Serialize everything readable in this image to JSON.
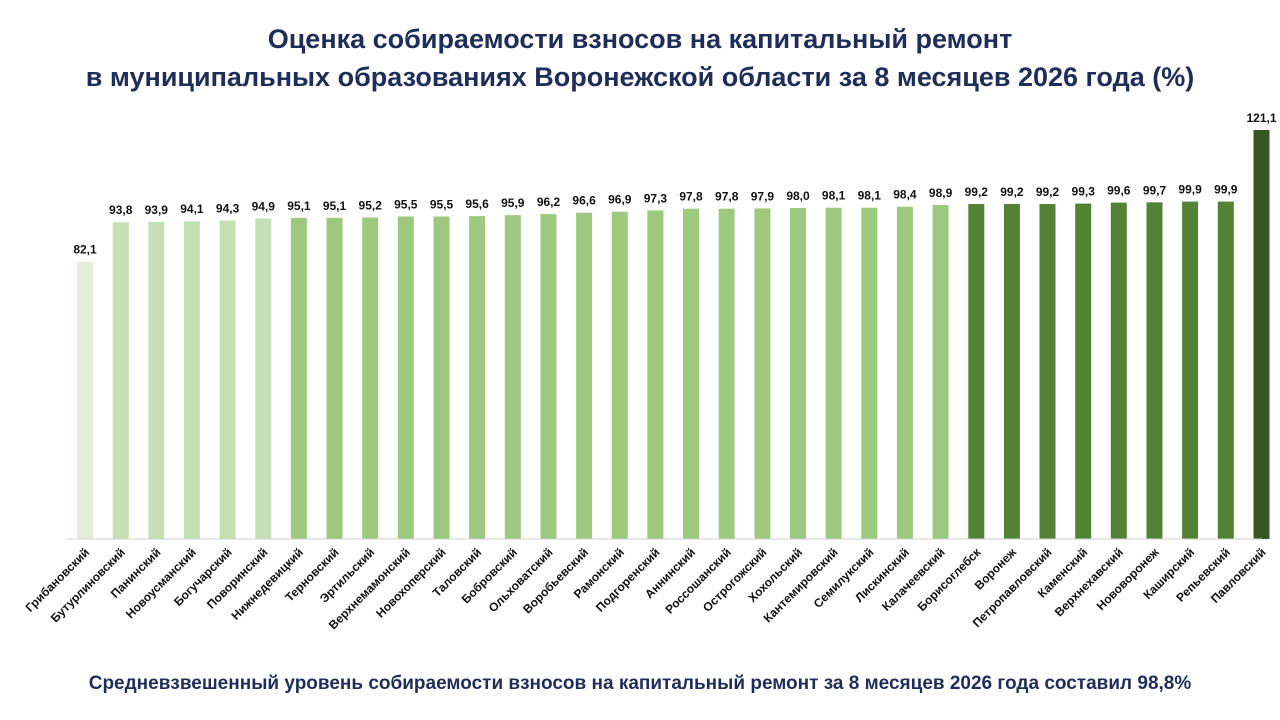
{
  "title": {
    "line1": "Оценка собираемости взносов на капитальный ремонт",
    "line2": "в муниципальных образованиях Воронежской области за 8 месяцев 2026 года (%)"
  },
  "footer": "Средневзвешенный уровень собираемости взносов на капитальный ремонт за 8 месяцев 2026 года составил 98,8%",
  "chart_data": {
    "type": "bar",
    "categories": [
      "Грибановский",
      "Бутурлиновский",
      "Панинский",
      "Новоусманский",
      "Богучарский",
      "Поворинский",
      "Нижнедевицкий",
      "Терновский",
      "Эртильский",
      "Верхнемамонский",
      "Новохоперский",
      "Таловский",
      "Бобровский",
      "Ольховатский",
      "Воробьевский",
      "Рамонский",
      "Подгоренский",
      "Аннинский",
      "Россошанский",
      "Острогожский",
      "Хохольский",
      "Кантемировский",
      "Семилукский",
      "Лискинский",
      "Калачеевский",
      "Борисоглебск",
      "Воронеж",
      "Петропавловский",
      "Каменский",
      "Верхнехавский",
      "Нововоронеж",
      "Каширский",
      "Репьевский",
      "Павловский"
    ],
    "values": [
      82.1,
      93.8,
      93.9,
      94.1,
      94.3,
      94.9,
      95.1,
      95.1,
      95.2,
      95.5,
      95.5,
      95.6,
      95.9,
      96.2,
      96.6,
      96.9,
      97.3,
      97.8,
      97.8,
      97.9,
      98.0,
      98.1,
      98.1,
      98.4,
      98.9,
      99.2,
      99.2,
      99.2,
      99.3,
      99.6,
      99.7,
      99.9,
      99.9,
      121.1
    ],
    "labels": [
      "82,1",
      "93,8",
      "93,9",
      "94,1",
      "94,3",
      "94,9",
      "95,1",
      "95,1",
      "95,2",
      "95,5",
      "95,5",
      "95,6",
      "95,9",
      "96,2",
      "96,6",
      "96,9",
      "97,3",
      "97,8",
      "97,8",
      "97,9",
      "98,0",
      "98,1",
      "98,1",
      "98,4",
      "98,9",
      "99,2",
      "99,2",
      "99,2",
      "99,3",
      "99,6",
      "99,7",
      "99,9",
      "99,9",
      "121,1"
    ],
    "colors": [
      "#e2efd9",
      "#c5e0b4",
      "#c5e0b4",
      "#c5e0b4",
      "#c5e0b4",
      "#c5e0b4",
      "#9dc97f",
      "#9dc97f",
      "#9dc97f",
      "#9dc97f",
      "#9dc97f",
      "#9dc97f",
      "#9dc97f",
      "#9dc97f",
      "#9dc97f",
      "#9dc97f",
      "#9dc97f",
      "#9dc97f",
      "#9dc97f",
      "#9dc97f",
      "#9dc97f",
      "#9dc97f",
      "#9dc97f",
      "#9dc97f",
      "#9dc97f",
      "#548235",
      "#548235",
      "#548235",
      "#548235",
      "#548235",
      "#548235",
      "#548235",
      "#548235",
      "#375623"
    ],
    "ylim": [
      0,
      121.1
    ],
    "grid": false,
    "legend": "none"
  }
}
